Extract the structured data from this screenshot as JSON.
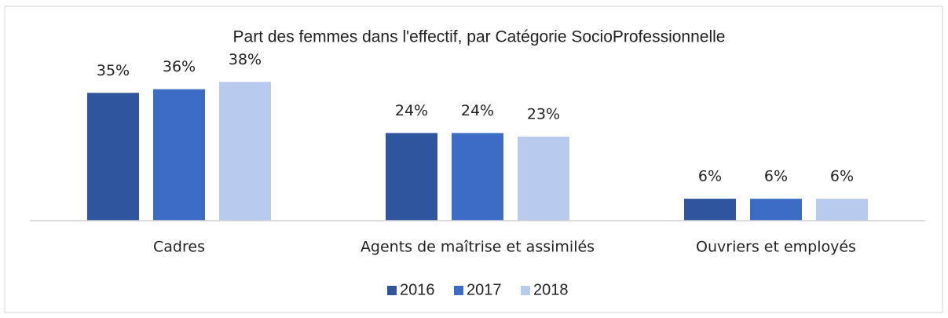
{
  "chart_data": {
    "type": "bar",
    "title": "Part des femmes dans l'effectif, par Catégorie SocioProfessionnelle",
    "categories": [
      "Cadres",
      "Agents de maîtrise et assimilés",
      "Ouvriers et employés"
    ],
    "series": [
      {
        "name": "2016",
        "color": "#2f559e",
        "values": [
          35,
          24,
          6
        ],
        "value_labels": [
          "35%",
          "24%",
          "6%"
        ]
      },
      {
        "name": "2017",
        "color": "#3d6cc6",
        "values": [
          36,
          24,
          6
        ],
        "value_labels": [
          "36%",
          "24%",
          "6%"
        ]
      },
      {
        "name": "2018",
        "color": "#b9caef",
        "values": [
          38,
          23,
          6
        ],
        "value_labels": [
          "38%",
          "23%",
          "6%"
        ]
      }
    ],
    "ylim": [
      0,
      40
    ],
    "grid": false,
    "legend": "bottom"
  }
}
